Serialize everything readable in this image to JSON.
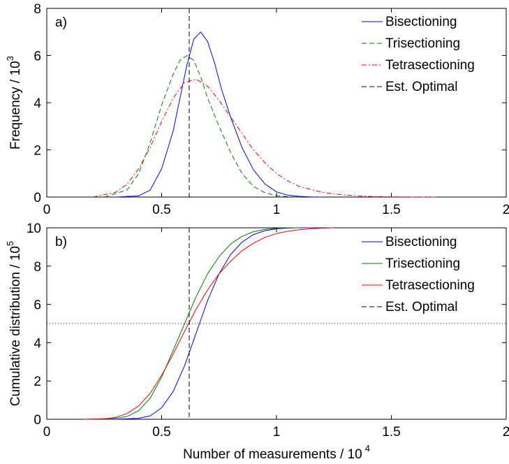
{
  "chart_data": [
    {
      "type": "line",
      "panel_label": "a)",
      "ylabel": "Frequency / 10",
      "ylabel_exp": "3",
      "xlim": [
        0,
        2
      ],
      "ylim": [
        0,
        8
      ],
      "xticks": [
        0,
        0.5,
        1,
        1.5,
        2
      ],
      "xtick_labels": [
        "0",
        "0.5",
        "1",
        "1.5",
        "2"
      ],
      "yticks": [
        0,
        2,
        4,
        6,
        8
      ],
      "ytick_labels": [
        "0",
        "2",
        "4",
        "6",
        "8"
      ],
      "legend_position": "top-right",
      "series": [
        {
          "name": "Bisectioning",
          "color": "#0000ff",
          "dash": "solid",
          "x": [
            0.3,
            0.4,
            0.45,
            0.5,
            0.55,
            0.58,
            0.61,
            0.64,
            0.67,
            0.7,
            0.73,
            0.76,
            0.8,
            0.85,
            0.9,
            0.95,
            1.0,
            1.05,
            1.1,
            1.15,
            1.2
          ],
          "y": [
            0.0,
            0.05,
            0.3,
            1.2,
            2.8,
            4.2,
            5.6,
            6.7,
            7.0,
            6.6,
            5.7,
            4.6,
            3.4,
            2.1,
            1.15,
            0.55,
            0.22,
            0.08,
            0.03,
            0.01,
            0.0
          ]
        },
        {
          "name": "Trisectioning",
          "color": "#007f00",
          "dash": "dash",
          "x": [
            0.25,
            0.35,
            0.4,
            0.45,
            0.5,
            0.55,
            0.58,
            0.61,
            0.64,
            0.67,
            0.7,
            0.75,
            0.8,
            0.85,
            0.9,
            0.95,
            1.0,
            1.05,
            1.1
          ],
          "y": [
            0.0,
            0.3,
            1.0,
            2.3,
            3.9,
            5.2,
            5.8,
            6.0,
            5.8,
            5.1,
            4.2,
            3.0,
            1.9,
            1.0,
            0.45,
            0.18,
            0.06,
            0.02,
            0.0
          ]
        },
        {
          "name": "Tetrasectioning",
          "color": "#ff0000",
          "dash": "dashdot",
          "x": [
            0.2,
            0.3,
            0.35,
            0.4,
            0.45,
            0.5,
            0.55,
            0.6,
            0.65,
            0.7,
            0.75,
            0.8,
            0.85,
            0.9,
            0.95,
            1.0,
            1.05,
            1.1,
            1.2,
            1.3,
            1.4,
            1.5,
            1.6,
            1.7
          ],
          "y": [
            0.0,
            0.2,
            0.55,
            1.2,
            2.1,
            3.2,
            4.2,
            4.85,
            5.0,
            4.7,
            4.1,
            3.4,
            2.7,
            2.0,
            1.45,
            1.0,
            0.68,
            0.45,
            0.2,
            0.08,
            0.03,
            0.01,
            0.0,
            0.0
          ]
        },
        {
          "name": "Est. Optimal",
          "color": "#000000",
          "dash": "dash",
          "vertical_x": 0.62
        }
      ]
    },
    {
      "type": "line",
      "panel_label": "b)",
      "ylabel": "Cumulative distribution / 10",
      "ylabel_exp": "5",
      "xlabel": "Number of measurements / 10",
      "xlabel_exp": "4",
      "xlim": [
        0,
        2
      ],
      "ylim": [
        0,
        10
      ],
      "xticks": [
        0,
        0.5,
        1,
        1.5,
        2
      ],
      "xtick_labels": [
        "0",
        "0.5",
        "1",
        "1.5",
        "2"
      ],
      "yticks": [
        0,
        2,
        4,
        6,
        8,
        10
      ],
      "ytick_labels": [
        "0",
        "2",
        "4",
        "6",
        "8",
        "10"
      ],
      "reference_line_y": 5,
      "legend_position": "top-right",
      "series": [
        {
          "name": "Bisectioning",
          "color": "#0000ff",
          "dash": "solid",
          "x": [
            0.16,
            0.3,
            0.4,
            0.45,
            0.5,
            0.55,
            0.6,
            0.65,
            0.7,
            0.75,
            0.8,
            0.85,
            0.9,
            0.95,
            1.0,
            1.05,
            1.1,
            1.15,
            1.2
          ],
          "y": [
            0.0,
            0.0,
            0.05,
            0.18,
            0.6,
            1.45,
            2.8,
            4.5,
            6.2,
            7.6,
            8.6,
            9.25,
            9.65,
            9.85,
            9.95,
            9.98,
            10.0,
            10.0,
            10.0
          ]
        },
        {
          "name": "Trisectioning",
          "color": "#007f00",
          "dash": "solid",
          "x": [
            0.16,
            0.3,
            0.35,
            0.4,
            0.45,
            0.5,
            0.55,
            0.6,
            0.65,
            0.7,
            0.75,
            0.8,
            0.85,
            0.9,
            0.95,
            1.0,
            1.05,
            1.1
          ],
          "y": [
            0.0,
            0.05,
            0.15,
            0.45,
            1.1,
            2.2,
            3.6,
            5.0,
            6.4,
            7.6,
            8.5,
            9.15,
            9.55,
            9.8,
            9.92,
            9.97,
            10.0,
            10.0
          ]
        },
        {
          "name": "Tetrasectioning",
          "color": "#ff0000",
          "dash": "solid",
          "x": [
            0.16,
            0.25,
            0.3,
            0.35,
            0.4,
            0.45,
            0.5,
            0.55,
            0.6,
            0.65,
            0.7,
            0.75,
            0.8,
            0.85,
            0.9,
            0.95,
            1.0,
            1.05,
            1.1,
            1.15,
            1.2,
            1.25
          ],
          "y": [
            0.0,
            0.02,
            0.1,
            0.3,
            0.7,
            1.35,
            2.3,
            3.4,
            4.6,
            5.75,
            6.75,
            7.6,
            8.25,
            8.8,
            9.2,
            9.5,
            9.7,
            9.82,
            9.9,
            9.95,
            9.98,
            10.0
          ]
        },
        {
          "name": "Est. Optimal",
          "color": "#000000",
          "dash": "dash",
          "vertical_x": 0.62
        }
      ]
    }
  ]
}
